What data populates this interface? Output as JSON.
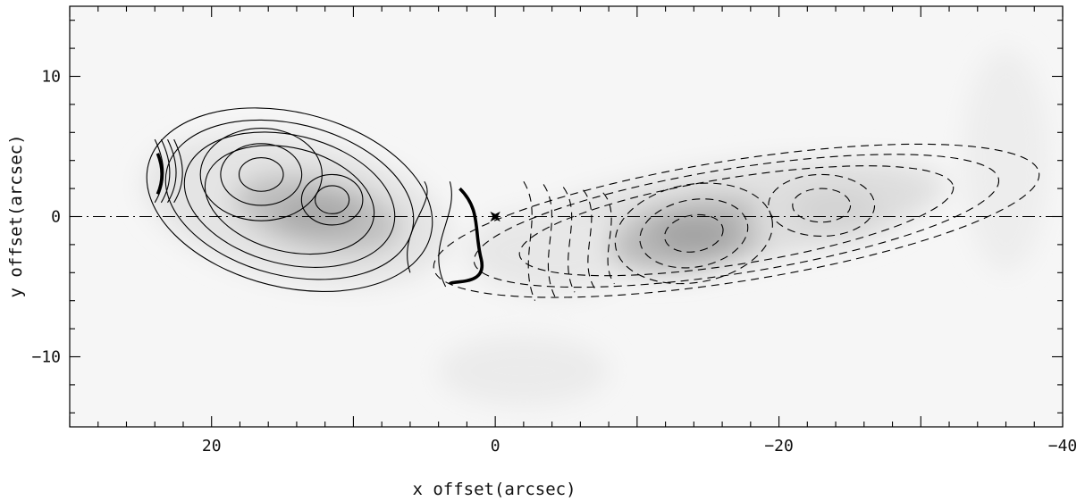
{
  "chart_data": {
    "type": "contour",
    "xlabel": "x offset(arcsec)",
    "ylabel": "y offset(arcsec)",
    "xlim": [
      30,
      -40
    ],
    "ylim": [
      -15,
      15
    ],
    "x_ticks": [
      20,
      0,
      -20,
      -40
    ],
    "x_tick_labels": [
      "20",
      "0",
      "−20",
      "−40"
    ],
    "y_ticks": [
      10,
      0,
      -10
    ],
    "y_tick_labels": [
      "10",
      "0",
      "−10"
    ],
    "x_minor_step": 2,
    "y_minor_step": 2,
    "grayscale_peaks": [
      {
        "x": 12.5,
        "y": 0.2,
        "level": 0.55
      },
      {
        "x": -14.0,
        "y": -1.3,
        "level": 0.6
      },
      {
        "x": -24.0,
        "y": 0.5,
        "level": 0.25
      }
    ],
    "positive_contour_centers": [
      {
        "x": 16.5,
        "y": 3.0
      },
      {
        "x": 11.5,
        "y": 1.2
      }
    ],
    "negative_contour_centers": [
      {
        "x": -14.0,
        "y": -1.2
      },
      {
        "x": -23.0,
        "y": 0.8
      }
    ],
    "marker": {
      "x": 0,
      "y": 0,
      "symbol": "star"
    },
    "reference_line": {
      "y": 0,
      "style": "dash-dot"
    },
    "colors": {
      "contour": "#000000",
      "background": "#ffffff"
    }
  }
}
